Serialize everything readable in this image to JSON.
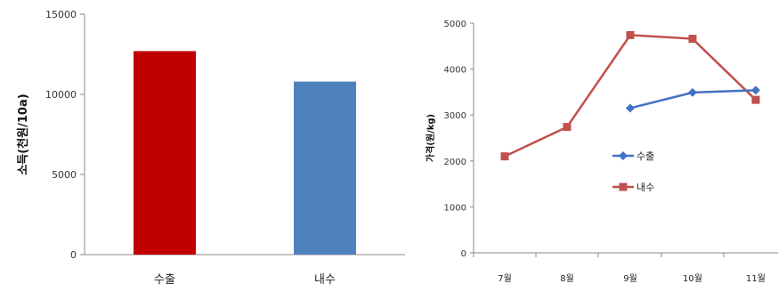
{
  "chart_data": [
    {
      "type": "bar",
      "categories": [
        "수출",
        "내수"
      ],
      "values": [
        12700,
        10800
      ],
      "colors": [
        "#c00000",
        "#4f81bd"
      ],
      "title": "",
      "xlabel": "",
      "ylabel": "소득(천원/10a)",
      "ylim": [
        0,
        15000
      ],
      "yticks": [
        0,
        5000,
        10000,
        15000
      ],
      "grid": false,
      "legend": "none"
    },
    {
      "type": "line",
      "categories": [
        "7월",
        "8월",
        "9월",
        "10월",
        "11월"
      ],
      "series": [
        {
          "name": "수출",
          "color": "#4472c4",
          "marker": "diamond",
          "values": [
            null,
            null,
            3150,
            3490,
            3540
          ]
        },
        {
          "name": "내수",
          "color": "#c0504d",
          "marker": "square",
          "values": [
            2100,
            2740,
            4740,
            4660,
            3330
          ]
        }
      ],
      "title": "",
      "xlabel": "",
      "ylabel": "가격(원/kg)",
      "ylim": [
        0,
        5000
      ],
      "yticks": [
        0,
        1000,
        2000,
        3000,
        4000,
        5000
      ],
      "grid": false,
      "legend": "center"
    }
  ]
}
